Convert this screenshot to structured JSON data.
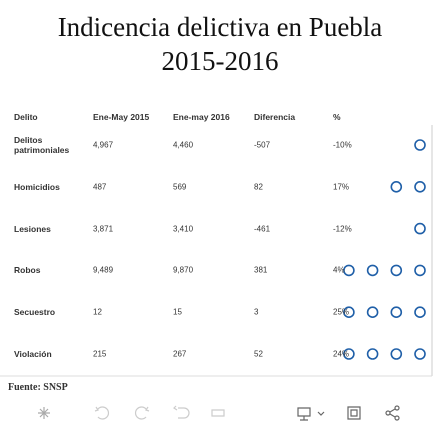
{
  "title_lines": [
    "Indicencia delictiva en Puebla",
    "2015-2016"
  ],
  "table": {
    "header": [
      "Delito",
      "Ene-May 2015",
      "Ene-may 2016",
      "Diferencia",
      "%"
    ],
    "rows": [
      [
        "Delitos patrimoniales",
        "4,967",
        "4,460",
        "-507",
        "-10%"
      ],
      [
        "Homicidios",
        "487",
        "569",
        "82",
        "17%"
      ],
      [
        "Lesiones",
        "3,871",
        "3,410",
        "-461",
        "-12%"
      ],
      [
        "Robos",
        "9,489",
        "9,870",
        "381",
        "4%"
      ],
      [
        "Secuestro",
        "12",
        "15",
        "3",
        "25%"
      ],
      [
        "Violación",
        "215",
        "267",
        "52",
        "24%"
      ]
    ]
  },
  "footer": "Fuente:  SNSP"
}
